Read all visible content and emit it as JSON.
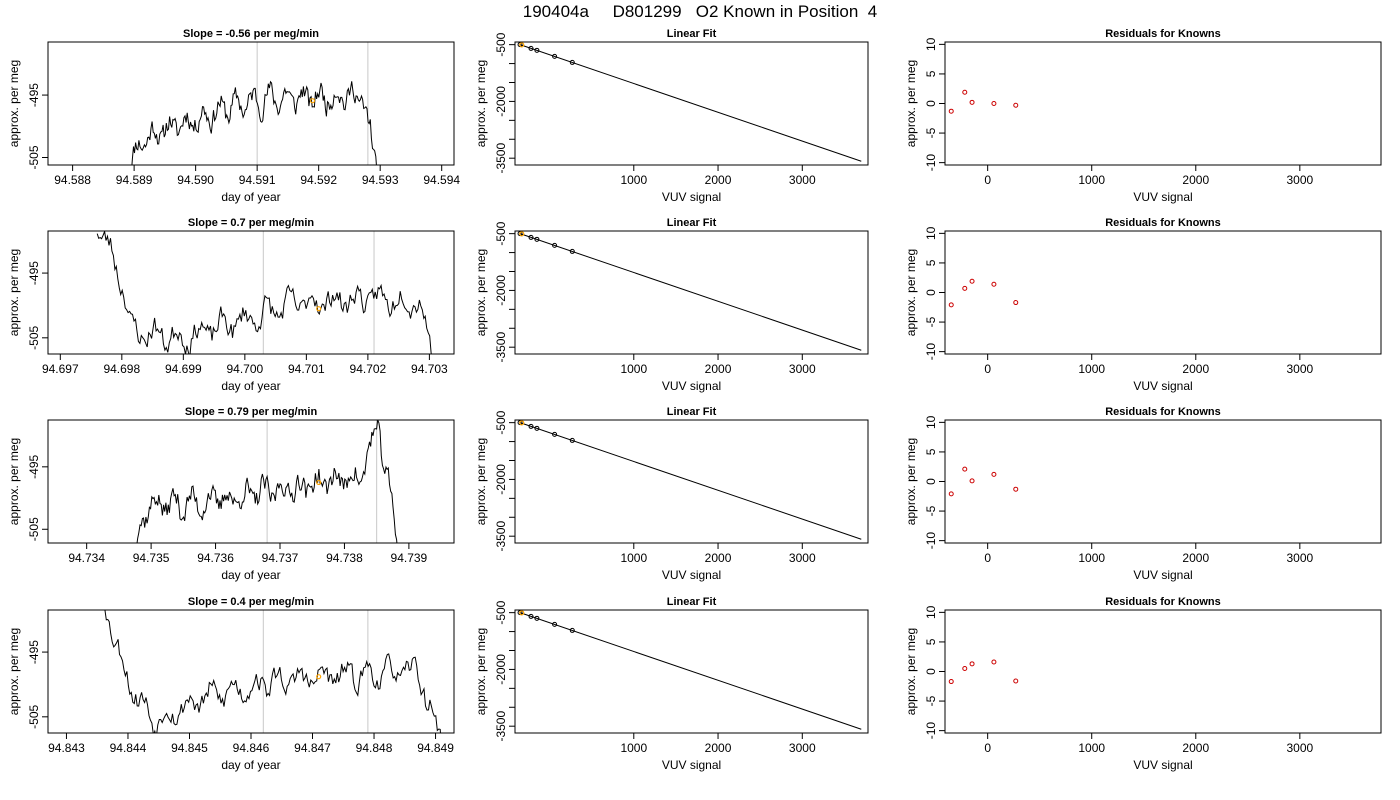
{
  "page": {
    "title_parts": [
      "190404a",
      "D801299",
      "O2 Known in Position  4"
    ]
  },
  "chart_data": [
    {
      "type": "line",
      "row": 0,
      "col": 0,
      "title": "Slope =  -0.56  per meg/min",
      "xlabel": "day of year",
      "ylabel": "approx. per meg",
      "xlim": [
        94.5876,
        94.5942
      ],
      "ylim": [
        -506.2,
        -486.5
      ],
      "xticks": [
        94.588,
        94.589,
        94.59,
        94.591,
        94.592,
        94.593,
        94.594
      ],
      "xtick_labels": [
        "94.588",
        "94.589",
        "94.590",
        "94.591",
        "94.592",
        "94.593",
        "94.594"
      ],
      "yticks": [
        -505,
        -495
      ],
      "ytick_labels": [
        "-505",
        "-495"
      ],
      "vlines": [
        94.591,
        94.5928
      ],
      "marker": {
        "x": 94.5919,
        "y": -495.9,
        "color": "#ffa500"
      },
      "series": [
        {
          "x_start": 94.5889,
          "x_end": 94.593,
          "seed": 11,
          "trend": [
            [
              0,
              -506.5
            ],
            [
              0.06,
              -502
            ],
            [
              0.18,
              -500
            ],
            [
              0.4,
              -497
            ],
            [
              0.55,
              -495.5
            ],
            [
              0.75,
              -495.5
            ],
            [
              0.88,
              -495
            ],
            [
              0.93,
              -495.5
            ],
            [
              1.0,
              -509
            ]
          ],
          "amp": 1.5
        }
      ]
    },
    {
      "type": "scatter",
      "row": 0,
      "col": 1,
      "title": "Linear Fit",
      "xlabel": "VUV signal",
      "ylabel": "approx. per meg",
      "xlim": [
        -410,
        3780
      ],
      "ylim": [
        -3680,
        -430
      ],
      "xticks": [
        1000,
        2000,
        3000
      ],
      "xtick_labels": [
        "1000",
        "2000",
        "3000"
      ],
      "yticks": [
        -500,
        -2000,
        -3500
      ],
      "ytick_labels": [
        "-500",
        "-2000",
        "-3500"
      ],
      "y_minor_ticks": [
        -1000,
        -1500,
        -2500,
        -3000
      ],
      "fit_line": {
        "x": [
          -350,
          3700
        ],
        "y": [
          -500,
          -3580
        ]
      },
      "points": {
        "x": [
          -350,
          -220,
          -150,
          60,
          270
        ],
        "y": [
          -500,
          -600,
          -650,
          -810,
          -970
        ]
      },
      "highlight": {
        "x": -330,
        "y": -505,
        "color": "#ffa500"
      }
    },
    {
      "type": "scatter",
      "row": 0,
      "col": 2,
      "title": "Residuals for Knowns",
      "xlabel": "VUV signal",
      "ylabel": "approx. per meg",
      "xlim": [
        -410,
        3780
      ],
      "ylim": [
        -10.4,
        10.4
      ],
      "xticks": [
        0,
        1000,
        2000,
        3000
      ],
      "xtick_labels": [
        "0",
        "1000",
        "2000",
        "3000"
      ],
      "yticks": [
        -10,
        -5,
        0,
        5,
        10
      ],
      "ytick_labels": [
        "-10",
        "-5",
        "0",
        "5",
        "10"
      ],
      "points": {
        "x": [
          -350,
          -220,
          -150,
          60,
          270
        ],
        "y": [
          -1.3,
          1.9,
          0.2,
          0.0,
          -0.3
        ]
      }
    },
    {
      "type": "line",
      "row": 1,
      "col": 0,
      "title": "Slope =  0.7  per meg/min",
      "xlabel": "day of year",
      "ylabel": "approx. per meg",
      "xlim": [
        94.6968,
        94.7034
      ],
      "ylim": [
        -507.5,
        -488.5
      ],
      "xticks": [
        94.697,
        94.698,
        94.699,
        94.7,
        94.701,
        94.702,
        94.703
      ],
      "xtick_labels": [
        "94.697",
        "94.698",
        "94.699",
        "94.700",
        "94.701",
        "94.702",
        "94.703"
      ],
      "yticks": [
        -505,
        -495
      ],
      "ytick_labels": [
        "-505",
        "-495"
      ],
      "vlines": [
        94.7003,
        94.7021
      ],
      "marker": {
        "x": 94.7012,
        "y": -500.5,
        "color": "#ffa500"
      },
      "series": [
        {
          "x_start": 94.6976,
          "x_end": 94.7031,
          "seed": 23,
          "trend": [
            [
              0,
              -487
            ],
            [
              0.08,
              -497
            ],
            [
              0.1,
              -504
            ],
            [
              0.25,
              -505
            ],
            [
              0.45,
              -502
            ],
            [
              0.6,
              -499.5
            ],
            [
              0.8,
              -499
            ],
            [
              0.95,
              -499
            ],
            [
              1.0,
              -509
            ]
          ],
          "amp": 1.5
        }
      ]
    },
    {
      "type": "scatter",
      "row": 1,
      "col": 1,
      "title": "Linear Fit",
      "xlabel": "VUV signal",
      "ylabel": "approx. per meg",
      "xlim": [
        -410,
        3780
      ],
      "ylim": [
        -3680,
        -430
      ],
      "xticks": [
        1000,
        2000,
        3000
      ],
      "xtick_labels": [
        "1000",
        "2000",
        "3000"
      ],
      "yticks": [
        -500,
        -2000,
        -3500
      ],
      "ytick_labels": [
        "-500",
        "-2000",
        "-3500"
      ],
      "y_minor_ticks": [
        -1000,
        -1500,
        -2500,
        -3000
      ],
      "fit_line": {
        "x": [
          -350,
          3700
        ],
        "y": [
          -500,
          -3580
        ]
      },
      "points": {
        "x": [
          -350,
          -220,
          -150,
          60,
          270
        ],
        "y": [
          -500,
          -600,
          -650,
          -810,
          -970
        ]
      },
      "highlight": {
        "x": -330,
        "y": -505,
        "color": "#ffa500"
      }
    },
    {
      "type": "scatter",
      "row": 1,
      "col": 2,
      "title": "Residuals for Knowns",
      "xlabel": "VUV signal",
      "ylabel": "approx. per meg",
      "xlim": [
        -410,
        3780
      ],
      "ylim": [
        -10.4,
        10.4
      ],
      "xticks": [
        0,
        1000,
        2000,
        3000
      ],
      "xtick_labels": [
        "0",
        "1000",
        "2000",
        "3000"
      ],
      "yticks": [
        -10,
        -5,
        0,
        5,
        10
      ],
      "ytick_labels": [
        "-10",
        "-5",
        "0",
        "5",
        "10"
      ],
      "points": {
        "x": [
          -350,
          -220,
          -150,
          60,
          270
        ],
        "y": [
          -2.1,
          0.7,
          1.9,
          1.4,
          -1.7
        ]
      }
    },
    {
      "type": "line",
      "row": 2,
      "col": 0,
      "title": "Slope =  0.79  per meg/min",
      "xlabel": "day of year",
      "ylabel": "approx. per meg",
      "xlim": [
        94.7334,
        94.7397
      ],
      "ylim": [
        -507.2,
        -487.5
      ],
      "xticks": [
        94.734,
        94.735,
        94.736,
        94.737,
        94.738,
        94.739
      ],
      "xtick_labels": [
        "94.734",
        "94.735",
        "94.736",
        "94.737",
        "94.738",
        "94.739"
      ],
      "yticks": [
        -505,
        -495
      ],
      "ytick_labels": [
        "-505",
        "-495"
      ],
      "vlines": [
        94.7368,
        94.7385
      ],
      "marker": {
        "x": 94.7376,
        "y": -497.5,
        "color": "#ffa500"
      },
      "series": [
        {
          "x_start": 94.7347,
          "x_end": 94.7389,
          "seed": 37,
          "trend": [
            [
              0,
              -509
            ],
            [
              0.06,
              -501
            ],
            [
              0.2,
              -501
            ],
            [
              0.45,
              -499.5
            ],
            [
              0.7,
              -497.5
            ],
            [
              0.85,
              -496.5
            ],
            [
              0.91,
              -488
            ],
            [
              0.94,
              -497
            ],
            [
              1.0,
              -509
            ]
          ],
          "amp": 1.6
        }
      ]
    },
    {
      "type": "scatter",
      "row": 2,
      "col": 1,
      "title": "Linear Fit",
      "xlabel": "VUV signal",
      "ylabel": "approx. per meg",
      "xlim": [
        -410,
        3780
      ],
      "ylim": [
        -3680,
        -430
      ],
      "xticks": [
        1000,
        2000,
        3000
      ],
      "xtick_labels": [
        "1000",
        "2000",
        "3000"
      ],
      "yticks": [
        -500,
        -2000,
        -3500
      ],
      "ytick_labels": [
        "-500",
        "-2000",
        "-3500"
      ],
      "y_minor_ticks": [
        -1000,
        -1500,
        -2500,
        -3000
      ],
      "fit_line": {
        "x": [
          -350,
          3700
        ],
        "y": [
          -500,
          -3580
        ]
      },
      "points": {
        "x": [
          -350,
          -220,
          -150,
          60,
          270
        ],
        "y": [
          -500,
          -600,
          -650,
          -810,
          -970
        ]
      },
      "highlight": {
        "x": -330,
        "y": -505,
        "color": "#ffa500"
      }
    },
    {
      "type": "scatter",
      "row": 2,
      "col": 2,
      "title": "Residuals for Knowns",
      "xlabel": "VUV signal",
      "ylabel": "approx. per meg",
      "xlim": [
        -410,
        3780
      ],
      "ylim": [
        -10.4,
        10.4
      ],
      "xticks": [
        0,
        1000,
        2000,
        3000
      ],
      "xtick_labels": [
        "0",
        "1000",
        "2000",
        "3000"
      ],
      "yticks": [
        -10,
        -5,
        0,
        5,
        10
      ],
      "ytick_labels": [
        "-10",
        "-5",
        "0",
        "5",
        "10"
      ],
      "points": {
        "x": [
          -350,
          -220,
          -150,
          60,
          270
        ],
        "y": [
          -2.1,
          2.1,
          0.1,
          1.2,
          -1.3
        ]
      }
    },
    {
      "type": "line",
      "row": 3,
      "col": 0,
      "title": "Slope =  0.4  per meg/min",
      "xlabel": "day of year",
      "ylabel": "approx. per meg",
      "xlim": [
        94.8427,
        94.8493
      ],
      "ylim": [
        -507.5,
        -488.5
      ],
      "xticks": [
        94.843,
        94.844,
        94.845,
        94.846,
        94.847,
        94.848,
        94.849
      ],
      "xtick_labels": [
        "94.843",
        "94.844",
        "94.845",
        "94.846",
        "94.847",
        "94.848",
        "94.849"
      ],
      "yticks": [
        -505,
        -495
      ],
      "ytick_labels": [
        "-505",
        "-495"
      ],
      "vlines": [
        94.8462,
        94.8479
      ],
      "marker": {
        "x": 94.8471,
        "y": -498.8,
        "color": "#ffa500"
      },
      "series": [
        {
          "x_start": 94.8436,
          "x_end": 94.8491,
          "seed": 53,
          "trend": [
            [
              0,
              -486
            ],
            [
              0.05,
              -496
            ],
            [
              0.1,
              -502
            ],
            [
              0.15,
              -505.5
            ],
            [
              0.3,
              -502
            ],
            [
              0.5,
              -499.5
            ],
            [
              0.75,
              -498.5
            ],
            [
              0.93,
              -498
            ],
            [
              1.0,
              -509
            ]
          ],
          "amp": 1.4
        }
      ]
    },
    {
      "type": "scatter",
      "row": 3,
      "col": 1,
      "title": "Linear Fit",
      "xlabel": "VUV signal",
      "ylabel": "approx. per meg",
      "xlim": [
        -410,
        3780
      ],
      "ylim": [
        -3680,
        -430
      ],
      "xticks": [
        1000,
        2000,
        3000
      ],
      "xtick_labels": [
        "1000",
        "2000",
        "3000"
      ],
      "yticks": [
        -500,
        -2000,
        -3500
      ],
      "ytick_labels": [
        "-500",
        "-2000",
        "-3500"
      ],
      "y_minor_ticks": [
        -1000,
        -1500,
        -2500,
        -3000
      ],
      "fit_line": {
        "x": [
          -350,
          3700
        ],
        "y": [
          -500,
          -3580
        ]
      },
      "points": {
        "x": [
          -350,
          -220,
          -150,
          60,
          270
        ],
        "y": [
          -500,
          -600,
          -650,
          -810,
          -970
        ]
      },
      "highlight": {
        "x": -330,
        "y": -505,
        "color": "#ffa500"
      }
    },
    {
      "type": "scatter",
      "row": 3,
      "col": 2,
      "title": "Residuals for Knowns",
      "xlabel": "VUV signal",
      "ylabel": "approx. per meg",
      "xlim": [
        -410,
        3780
      ],
      "ylim": [
        -10.4,
        10.4
      ],
      "xticks": [
        0,
        1000,
        2000,
        3000
      ],
      "xtick_labels": [
        "0",
        "1000",
        "2000",
        "3000"
      ],
      "yticks": [
        -10,
        -5,
        0,
        5,
        10
      ],
      "ytick_labels": [
        "-10",
        "-5",
        "0",
        "5",
        "10"
      ],
      "points": {
        "x": [
          -350,
          -220,
          -150,
          60,
          270
        ],
        "y": [
          -1.7,
          0.5,
          1.3,
          1.6,
          -1.6
        ]
      }
    }
  ]
}
